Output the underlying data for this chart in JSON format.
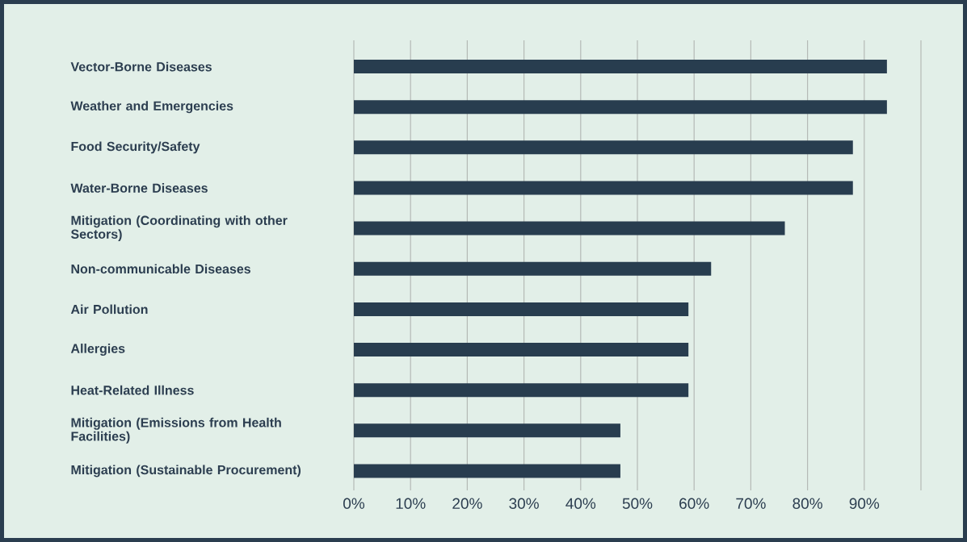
{
  "chart_data": {
    "type": "bar",
    "orientation": "horizontal",
    "categories": [
      "Vector-Borne Diseases",
      "Weather and Emergencies",
      "Food Security/Safety",
      "Water-Borne Diseases",
      "Mitigation (Coordinating with other Sectors)",
      "Non-communicable Diseases",
      "Air Pollution",
      "Allergies",
      "Heat-Related Illness",
      "Mitigation (Emissions from Health Facilities)",
      "Mitigation (Sustainable Procurement)"
    ],
    "values": [
      94,
      94,
      88,
      88,
      76,
      63,
      59,
      59,
      59,
      47,
      47
    ],
    "color": "#283d4f",
    "xlim": [
      0,
      100
    ],
    "xticks": [
      {
        "value": 0,
        "label": "0%"
      },
      {
        "value": 10,
        "label": "10%"
      },
      {
        "value": 20,
        "label": "20%"
      },
      {
        "value": 30,
        "label": "30%"
      },
      {
        "value": 40,
        "label": "40%"
      },
      {
        "value": 50,
        "label": "50%"
      },
      {
        "value": 60,
        "label": "60%"
      },
      {
        "value": 70,
        "label": "70%"
      },
      {
        "value": 80,
        "label": "80%"
      },
      {
        "value": 90,
        "label": "90%"
      },
      {
        "value": 100,
        "label": null
      }
    ],
    "grid": "x"
  }
}
